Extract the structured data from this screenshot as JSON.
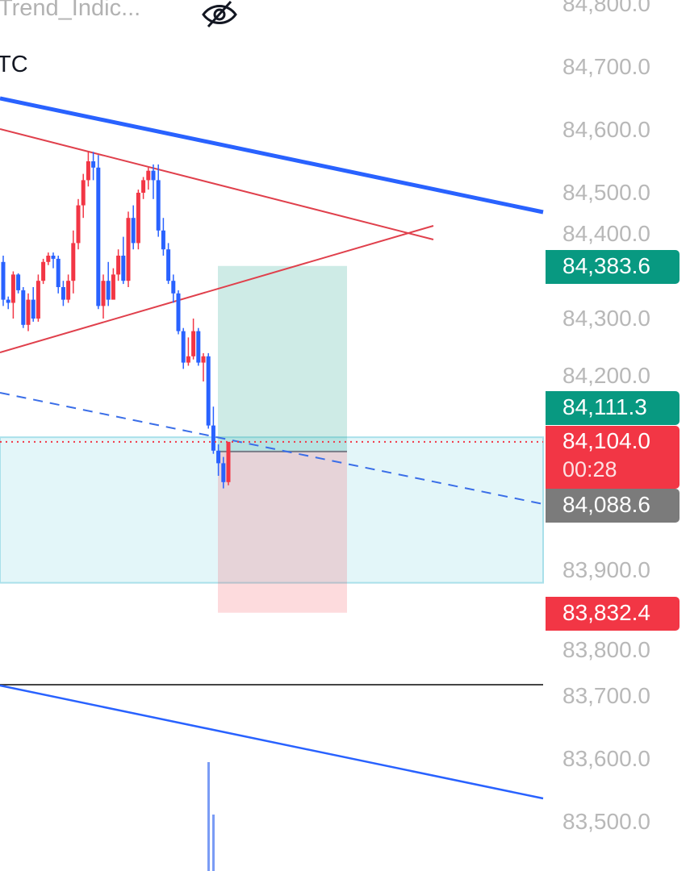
{
  "header": {
    "indicator_name": "Trend_Indic...",
    "symbol": "TC",
    "visibility_icon": "eye-off-icon"
  },
  "colors": {
    "up": "#f23645",
    "down": "#2962ff",
    "target": "#089981",
    "stop": "#f23645",
    "entry": "#787b86"
  },
  "chart_data": {
    "type": "candlestick",
    "ylim": [
      83450,
      84810
    ],
    "y_ticks": [
      "84,800.0",
      "84,700.0",
      "84,600.0",
      "84,500.0",
      "84,400.0",
      "84,300.0",
      "84,200.0",
      "83,900.0",
      "83,800.0",
      "83,700.0",
      "83,600.0",
      "83,500.0"
    ],
    "y_tick_values": [
      84800,
      84700,
      84600,
      84500,
      84400,
      84300,
      84200,
      83900,
      83800,
      83700,
      83600,
      83500
    ],
    "candles": [
      [
        84390,
        84400,
        84320,
        84330
      ],
      [
        84330,
        84335,
        84315,
        84325
      ],
      [
        84325,
        84375,
        84300,
        84370
      ],
      [
        84370,
        84372,
        84340,
        84345
      ],
      [
        84345,
        84350,
        84285,
        84290
      ],
      [
        84290,
        84340,
        84280,
        84330
      ],
      [
        84330,
        84350,
        84295,
        84300
      ],
      [
        84300,
        84370,
        84295,
        84360
      ],
      [
        84360,
        84395,
        84355,
        84390
      ],
      [
        84390,
        84405,
        84385,
        84400
      ],
      [
        84400,
        84405,
        84380,
        84395
      ],
      [
        84395,
        84400,
        84340,
        84350
      ],
      [
        84350,
        84360,
        84320,
        84330
      ],
      [
        84330,
        84370,
        84325,
        84360
      ],
      [
        84360,
        84440,
        84340,
        84420
      ],
      [
        84420,
        84490,
        84410,
        84480
      ],
      [
        84480,
        84530,
        84460,
        84520
      ],
      [
        84520,
        84565,
        84510,
        84550
      ],
      [
        84550,
        84565,
        84520,
        84540
      ],
      [
        84540,
        84560,
        84315,
        84320
      ],
      [
        84320,
        84370,
        84300,
        84360
      ],
      [
        84360,
        84390,
        84320,
        84330
      ],
      [
        84330,
        84380,
        84340,
        84370
      ],
      [
        84370,
        84410,
        84360,
        84400
      ],
      [
        84400,
        84430,
        84355,
        84360
      ],
      [
        84360,
        84470,
        84350,
        84460
      ],
      [
        84460,
        84480,
        84410,
        84420
      ],
      [
        84420,
        84505,
        84410,
        84500
      ],
      [
        84500,
        84525,
        84490,
        84520
      ],
      [
        84520,
        84540,
        84505,
        84535
      ],
      [
        84535,
        84545,
        84490,
        84520
      ],
      [
        84520,
        84545,
        84430,
        84440
      ],
      [
        84440,
        84460,
        84400,
        84410
      ],
      [
        84410,
        84420,
        84355,
        84360
      ],
      [
        84360,
        84370,
        84325,
        84340
      ],
      [
        84340,
        84345,
        84275,
        84280
      ],
      [
        84280,
        84285,
        84220,
        84230
      ],
      [
        84230,
        84270,
        84225,
        84240
      ],
      [
        84240,
        84300,
        84235,
        84280
      ],
      [
        84280,
        84285,
        84225,
        84230
      ],
      [
        84230,
        84245,
        84200,
        84240
      ],
      [
        84240,
        84245,
        84125,
        84130
      ],
      [
        84130,
        84160,
        84085,
        84090
      ],
      [
        84090,
        84100,
        84050,
        84070
      ],
      [
        84070,
        84080,
        84030,
        84040
      ],
      [
        84040,
        84104,
        84035,
        84104
      ]
    ],
    "price_labels": [
      {
        "value": "84,383.6",
        "kind": "target"
      },
      {
        "value": "84,111.3",
        "kind": "target"
      },
      {
        "value": "84,104.0",
        "countdown": "00:28",
        "kind": "last"
      },
      {
        "value": "84,088.6",
        "kind": "entry"
      },
      {
        "value": "83,832.4",
        "kind": "stop"
      }
    ],
    "position": {
      "entry": 84088.6,
      "target": 84383.6,
      "stop": 83832.4
    },
    "zone": {
      "top": 84111.3,
      "bottom": 83880
    },
    "last_price": 84104.0
  }
}
